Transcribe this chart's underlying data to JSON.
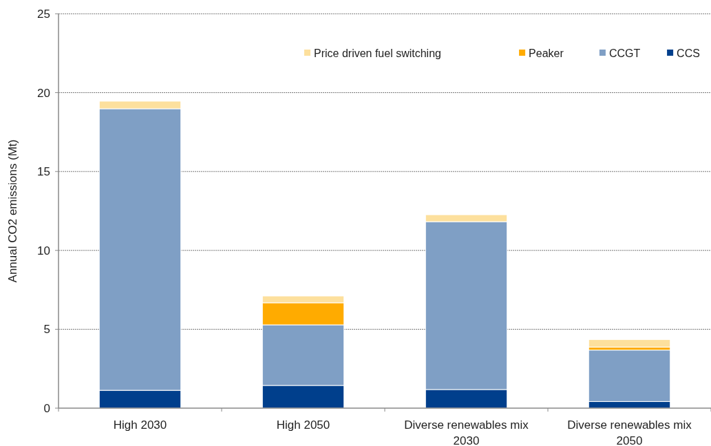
{
  "chart_data": {
    "type": "bar",
    "stacked": true,
    "ylabel": "Annual CO2 emissions (Mt)",
    "categories": [
      "High 2030",
      "High 2050",
      "Diverse renewables mix 2030",
      "Diverse renewables mix 2050"
    ],
    "series": [
      {
        "name": "CCS",
        "color": "#003f8c",
        "values": [
          1.13,
          1.44,
          1.18,
          0.42
        ]
      },
      {
        "name": "CCGT",
        "color": "#7f9fc5",
        "values": [
          17.85,
          3.84,
          10.64,
          3.26
        ]
      },
      {
        "name": "Peaker",
        "color": "#ffab00",
        "values": [
          null,
          1.4,
          null,
          0.19
        ]
      },
      {
        "name": "Price driven fuel switching",
        "color": "#fde09d",
        "values": [
          0.48,
          0.43,
          0.44,
          0.48
        ]
      }
    ],
    "ylim": [
      0,
      25
    ],
    "yticks": [
      0,
      5,
      10,
      15,
      20,
      25
    ],
    "grid": "y",
    "legend": "top right"
  }
}
